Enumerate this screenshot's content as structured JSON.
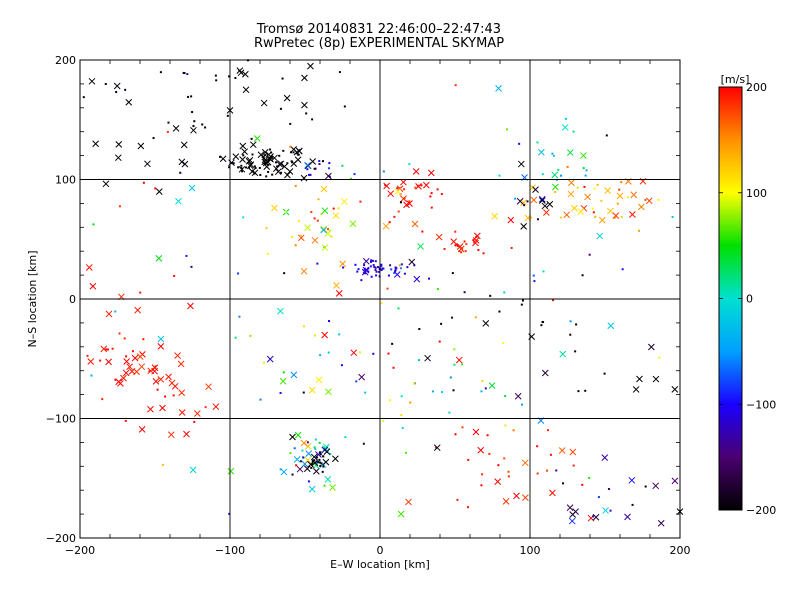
{
  "chart_data": {
    "type": "scatter",
    "title_line1": "Tromsø 20140831 22:46:00–22:47:43",
    "title_line2": "RwPretec (8p) EXPERIMENTAL SKYMAP",
    "xlabel": "E–W location [km]",
    "ylabel": "N–S location [km]",
    "xlim": [
      -200,
      200
    ],
    "ylim": [
      -200,
      200
    ],
    "xticks": [
      -200,
      -100,
      0,
      100,
      200
    ],
    "yticks": [
      -200,
      -100,
      0,
      100,
      200
    ],
    "xtick_labels": [
      "−200",
      "−100",
      "0",
      "100",
      "200"
    ],
    "ytick_labels": [
      "−200",
      "−100",
      "0",
      "100",
      "200"
    ],
    "grid": true,
    "colorbar": {
      "label": "[m/s]",
      "range": [
        -200,
        200
      ],
      "ticks": [
        -200,
        -100,
        0,
        100,
        200
      ],
      "tick_labels": [
        "−200",
        "−100",
        "0",
        "100",
        "200"
      ],
      "colormap": [
        "#000000",
        "#4a0070",
        "#1a00ff",
        "#00a0ff",
        "#00e0d0",
        "#00e000",
        "#ffff00",
        "#ff9000",
        "#ff0000"
      ]
    },
    "marker_types": [
      "cross",
      "dot"
    ],
    "clusters": [
      {
        "cx": -75,
        "cy": 115,
        "sx": 14,
        "sy": 6,
        "v": -200,
        "vs": 5,
        "n": 80,
        "cross": 0.55
      },
      {
        "cx": -40,
        "cy": 110,
        "sx": 8,
        "sy": 5,
        "v": -120,
        "vs": 60,
        "n": 12,
        "cross": 0.2
      },
      {
        "cx": 0,
        "cy": 25,
        "sx": 12,
        "sy": 4,
        "v": -110,
        "vs": 15,
        "n": 55,
        "cross": 0.1
      },
      {
        "cx": 20,
        "cy": 88,
        "sx": 15,
        "sy": 8,
        "v": 195,
        "vs": 10,
        "n": 30,
        "cross": 0.5
      },
      {
        "cx": -45,
        "cy": 60,
        "sx": 15,
        "sy": 12,
        "v": 110,
        "vs": 40,
        "n": 30,
        "cross": 0.5
      },
      {
        "cx": 55,
        "cy": 45,
        "sx": 10,
        "sy": 6,
        "v": 195,
        "vs": 10,
        "n": 22,
        "cross": 0.3
      },
      {
        "cx": 140,
        "cy": 80,
        "sx": 25,
        "sy": 12,
        "v": 140,
        "vs": 30,
        "n": 45,
        "cross": 0.55
      },
      {
        "cx": 115,
        "cy": 115,
        "sx": 15,
        "sy": 15,
        "v": -10,
        "vs": 50,
        "n": 20,
        "cross": 0.45
      },
      {
        "cx": 95,
        "cy": 85,
        "sx": 12,
        "sy": 10,
        "v": -200,
        "vs": 30,
        "n": 10,
        "cross": 0.6
      },
      {
        "cx": -170,
        "cy": -50,
        "sx": 18,
        "sy": 30,
        "v": 195,
        "vs": 10,
        "n": 45,
        "cross": 0.7
      },
      {
        "cx": -135,
        "cy": -90,
        "sx": 15,
        "sy": 20,
        "v": 195,
        "vs": 10,
        "n": 18,
        "cross": 0.6
      },
      {
        "cx": -45,
        "cy": -130,
        "sx": 10,
        "sy": 10,
        "v": -40,
        "vs": 90,
        "n": 45,
        "cross": 0.3
      },
      {
        "cx": -40,
        "cy": -135,
        "sx": 5,
        "sy": 5,
        "v": -200,
        "vs": 5,
        "n": 20,
        "cross": 0.2
      },
      {
        "cx": -110,
        "cy": 170,
        "sx": 45,
        "sy": 18,
        "v": -200,
        "vs": 5,
        "n": 45,
        "cross": 0.25
      },
      {
        "cx": 80,
        "cy": -140,
        "sx": 30,
        "sy": 20,
        "v": 190,
        "vs": 20,
        "n": 30,
        "cross": 0.4
      },
      {
        "cx": 155,
        "cy": -165,
        "sx": 30,
        "sy": 20,
        "v": -150,
        "vs": 60,
        "n": 22,
        "cross": 0.6
      },
      {
        "cx": 170,
        "cy": -55,
        "sx": 15,
        "sy": 20,
        "v": -200,
        "vs": 10,
        "n": 10,
        "cross": 0.6
      },
      {
        "cx": 0,
        "cy": -60,
        "sx": 50,
        "sy": 40,
        "v": 20,
        "vs": 110,
        "n": 55,
        "cross": 0.15
      },
      {
        "cx": 90,
        "cy": -20,
        "sx": 30,
        "sy": 20,
        "v": -200,
        "vs": 10,
        "n": 15,
        "cross": 0.3
      },
      {
        "cx": -160,
        "cy": 120,
        "sx": 20,
        "sy": 15,
        "v": -200,
        "vs": 5,
        "n": 12,
        "cross": 0.6
      },
      {
        "cx": 0,
        "cy": 0,
        "sx": 120,
        "sy": 110,
        "v": 0,
        "vs": 160,
        "n": 110,
        "cross": 0.3
      }
    ]
  }
}
